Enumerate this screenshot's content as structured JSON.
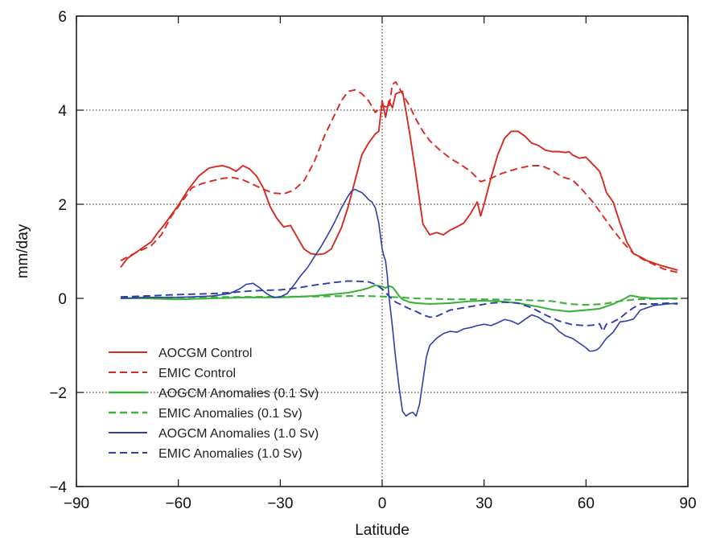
{
  "chart_data": {
    "type": "line",
    "title": "",
    "xlabel": "Latitude",
    "ylabel": "mm/day",
    "xlim": [
      -90,
      90
    ],
    "ylim": [
      -4,
      6
    ],
    "x_ticks": [
      -90,
      -60,
      -30,
      0,
      30,
      60,
      90
    ],
    "y_ticks": [
      -4,
      -2,
      0,
      2,
      4,
      6
    ],
    "x_tick_labels": [
      "−90",
      "−60",
      "−30",
      "0",
      "30",
      "60",
      "90"
    ],
    "y_tick_labels": [
      "−4",
      "−2",
      "0",
      "2",
      "4",
      "6"
    ],
    "grid": "horizontal dotted at y = -2, 2, 4; vertical dotted at x = 0",
    "legend_placement": "lower-left",
    "series": [
      {
        "name": "AOCGM Control",
        "color": "#d62a22",
        "style": "solid",
        "x": [
          -77,
          -75,
          -72,
          -70,
          -68,
          -66,
          -64,
          -62,
          -60,
          -57,
          -54,
          -51,
          -49,
          -47,
          -45,
          -43,
          -41,
          -39,
          -37,
          -35,
          -33,
          -31,
          -29,
          -27,
          -25,
          -23,
          -21,
          -19,
          -17,
          -15,
          -12,
          -10,
          -8,
          -6,
          -4,
          -2,
          -1,
          0,
          1,
          2,
          3,
          4,
          6,
          8,
          10,
          12,
          14,
          16,
          18,
          20,
          22,
          24,
          26,
          28,
          29,
          30,
          32,
          34,
          36,
          38,
          40,
          42,
          44,
          46,
          48,
          50,
          52,
          54,
          55,
          56,
          58,
          60,
          62,
          64,
          65,
          66,
          68,
          70,
          72,
          74,
          76,
          78,
          80,
          82,
          84,
          87
        ],
        "values": [
          0.66,
          0.85,
          1.0,
          1.1,
          1.2,
          1.4,
          1.58,
          1.78,
          1.98,
          2.32,
          2.6,
          2.77,
          2.8,
          2.82,
          2.78,
          2.7,
          2.82,
          2.75,
          2.6,
          2.35,
          1.95,
          1.7,
          1.52,
          1.55,
          1.3,
          1.05,
          0.95,
          0.93,
          0.95,
          1.05,
          1.5,
          1.95,
          2.5,
          3.05,
          3.3,
          3.5,
          3.55,
          4.2,
          3.85,
          4.2,
          4.05,
          4.35,
          4.4,
          3.55,
          2.6,
          1.58,
          1.35,
          1.4,
          1.35,
          1.45,
          1.52,
          1.6,
          1.8,
          2.05,
          1.75,
          2.0,
          2.55,
          3.05,
          3.4,
          3.55,
          3.55,
          3.45,
          3.3,
          3.25,
          3.15,
          3.12,
          3.12,
          3.1,
          3.12,
          3.05,
          2.98,
          3.0,
          2.85,
          2.7,
          2.5,
          2.25,
          2.05,
          1.6,
          1.2,
          0.95,
          0.88,
          0.8,
          0.75,
          0.7,
          0.66,
          0.6
        ]
      },
      {
        "name": "EMIC Control",
        "color": "#d62a22",
        "style": "dashed",
        "x": [
          -77,
          -74,
          -71,
          -68,
          -65,
          -62,
          -59,
          -56,
          -53,
          -50,
          -47,
          -44,
          -41,
          -38,
          -35,
          -32,
          -29,
          -26,
          -23,
          -20,
          -17,
          -14,
          -12,
          -10,
          -8,
          -6,
          -4,
          -2,
          0,
          2,
          3,
          4,
          6,
          8,
          10,
          12,
          14,
          17,
          20,
          23,
          26,
          29,
          32,
          35,
          38,
          41,
          44,
          47,
          50,
          53,
          56,
          59,
          62,
          65,
          68,
          71,
          74,
          77,
          80,
          83,
          87
        ],
        "values": [
          0.8,
          0.92,
          1.02,
          1.12,
          1.35,
          1.75,
          2.05,
          2.35,
          2.44,
          2.5,
          2.55,
          2.57,
          2.52,
          2.42,
          2.32,
          2.24,
          2.22,
          2.3,
          2.5,
          2.9,
          3.45,
          3.9,
          4.2,
          4.4,
          4.43,
          4.35,
          4.2,
          3.95,
          4.1,
          4.05,
          4.55,
          4.6,
          4.35,
          4.1,
          3.8,
          3.55,
          3.35,
          3.15,
          2.98,
          2.85,
          2.7,
          2.48,
          2.55,
          2.65,
          2.72,
          2.78,
          2.82,
          2.82,
          2.72,
          2.58,
          2.52,
          2.3,
          2.05,
          1.75,
          1.45,
          1.18,
          0.95,
          0.82,
          0.72,
          0.62,
          0.55
        ]
      },
      {
        "name": "AOGCM Anomalies (0.1 Sv)",
        "color": "#3cb23c",
        "style": "solid",
        "x": [
          -77,
          -70,
          -60,
          -50,
          -40,
          -30,
          -20,
          -10,
          -6,
          -4,
          -2,
          0,
          1,
          2,
          3,
          4,
          5,
          6,
          8,
          10,
          14,
          20,
          26,
          30,
          34,
          40,
          46,
          50,
          55,
          60,
          64,
          68,
          71,
          73,
          74,
          76,
          80,
          87
        ],
        "values": [
          0.0,
          0.0,
          -0.02,
          0.0,
          0.02,
          0.02,
          0.05,
          0.12,
          0.18,
          0.22,
          0.28,
          0.25,
          0.22,
          0.26,
          0.24,
          0.15,
          0.05,
          -0.02,
          -0.08,
          -0.1,
          -0.12,
          -0.1,
          -0.06,
          -0.05,
          -0.06,
          -0.1,
          -0.18,
          -0.24,
          -0.28,
          -0.25,
          -0.22,
          -0.12,
          -0.02,
          0.06,
          0.05,
          0.02,
          0.0,
          0.0
        ]
      },
      {
        "name": "EMIC Anomalies (0.1 Sv)",
        "color": "#3cb23c",
        "style": "dashed",
        "x": [
          -77,
          -60,
          -40,
          -20,
          -10,
          -5,
          0,
          2,
          5,
          10,
          20,
          30,
          40,
          50,
          55,
          60,
          65,
          70,
          75,
          80,
          87
        ],
        "values": [
          0.02,
          0.02,
          0.03,
          0.04,
          0.05,
          0.05,
          0.04,
          0.03,
          0.02,
          0.0,
          -0.02,
          -0.02,
          -0.03,
          -0.06,
          -0.12,
          -0.14,
          -0.12,
          -0.06,
          -0.02,
          -0.01,
          -0.01
        ]
      },
      {
        "name": "AOGCM Anomalies (1.0 Sv)",
        "color": "#2f3ea8",
        "style": "solid",
        "x": [
          -77,
          -70,
          -60,
          -50,
          -45,
          -42,
          -40,
          -38,
          -36,
          -34,
          -32,
          -30,
          -28,
          -26,
          -24,
          -22,
          -20,
          -18,
          -16,
          -14,
          -12,
          -10,
          -9,
          -8,
          -7,
          -6,
          -5,
          -4,
          -3,
          -2,
          -1,
          0,
          0.5,
          1,
          1.5,
          2,
          3,
          4,
          5,
          6,
          7,
          8,
          9,
          10,
          11,
          12,
          13,
          14,
          16,
          18,
          20,
          22,
          24,
          26,
          28,
          30,
          32,
          34,
          36,
          38,
          40,
          42,
          44,
          46,
          48,
          50,
          52,
          54,
          56,
          58,
          60,
          61,
          62,
          63,
          64,
          66,
          68,
          70,
          72,
          74,
          76,
          78,
          80,
          84,
          87
        ],
        "values": [
          0.0,
          0.02,
          0.02,
          0.05,
          0.1,
          0.2,
          0.3,
          0.32,
          0.22,
          0.1,
          0.02,
          0.03,
          0.1,
          0.28,
          0.48,
          0.65,
          0.88,
          1.1,
          1.35,
          1.62,
          1.92,
          2.18,
          2.28,
          2.32,
          2.28,
          2.25,
          2.18,
          2.1,
          2.05,
          1.92,
          1.6,
          1.05,
          0.9,
          0.8,
          0.5,
          0.05,
          -0.6,
          -1.3,
          -1.9,
          -2.4,
          -2.5,
          -2.45,
          -2.42,
          -2.5,
          -2.25,
          -1.75,
          -1.25,
          -1.0,
          -0.85,
          -0.75,
          -0.7,
          -0.72,
          -0.65,
          -0.62,
          -0.58,
          -0.55,
          -0.58,
          -0.52,
          -0.45,
          -0.48,
          -0.55,
          -0.45,
          -0.35,
          -0.4,
          -0.5,
          -0.55,
          -0.7,
          -0.8,
          -0.85,
          -0.95,
          -1.05,
          -1.12,
          -1.12,
          -1.1,
          -1.05,
          -0.85,
          -0.72,
          -0.5,
          -0.48,
          -0.44,
          -0.25,
          -0.2,
          -0.15,
          -0.12,
          -0.1
        ]
      },
      {
        "name": "EMIC Anomalies (1.0 Sv)",
        "color": "#2f3ea8",
        "style": "dashed",
        "x": [
          -77,
          -70,
          -60,
          -50,
          -45,
          -40,
          -35,
          -30,
          -25,
          -20,
          -15,
          -10,
          -6,
          -4,
          -2,
          0,
          2,
          4,
          6,
          8,
          10,
          12,
          14,
          16,
          18,
          20,
          24,
          28,
          32,
          36,
          40,
          44,
          48,
          52,
          56,
          60,
          62,
          64,
          65,
          66,
          68,
          70,
          72,
          74,
          76,
          80,
          84,
          87
        ],
        "values": [
          0.03,
          0.05,
          0.08,
          0.1,
          0.12,
          0.15,
          0.17,
          0.18,
          0.22,
          0.28,
          0.33,
          0.37,
          0.36,
          0.35,
          0.3,
          0.2,
          0.05,
          -0.08,
          -0.15,
          -0.22,
          -0.28,
          -0.35,
          -0.4,
          -0.38,
          -0.32,
          -0.25,
          -0.2,
          -0.15,
          -0.1,
          -0.08,
          -0.1,
          -0.2,
          -0.35,
          -0.48,
          -0.56,
          -0.58,
          -0.57,
          -0.54,
          -0.7,
          -0.55,
          -0.5,
          -0.42,
          -0.3,
          -0.2,
          -0.12,
          -0.12,
          -0.1,
          -0.12
        ]
      }
    ]
  }
}
